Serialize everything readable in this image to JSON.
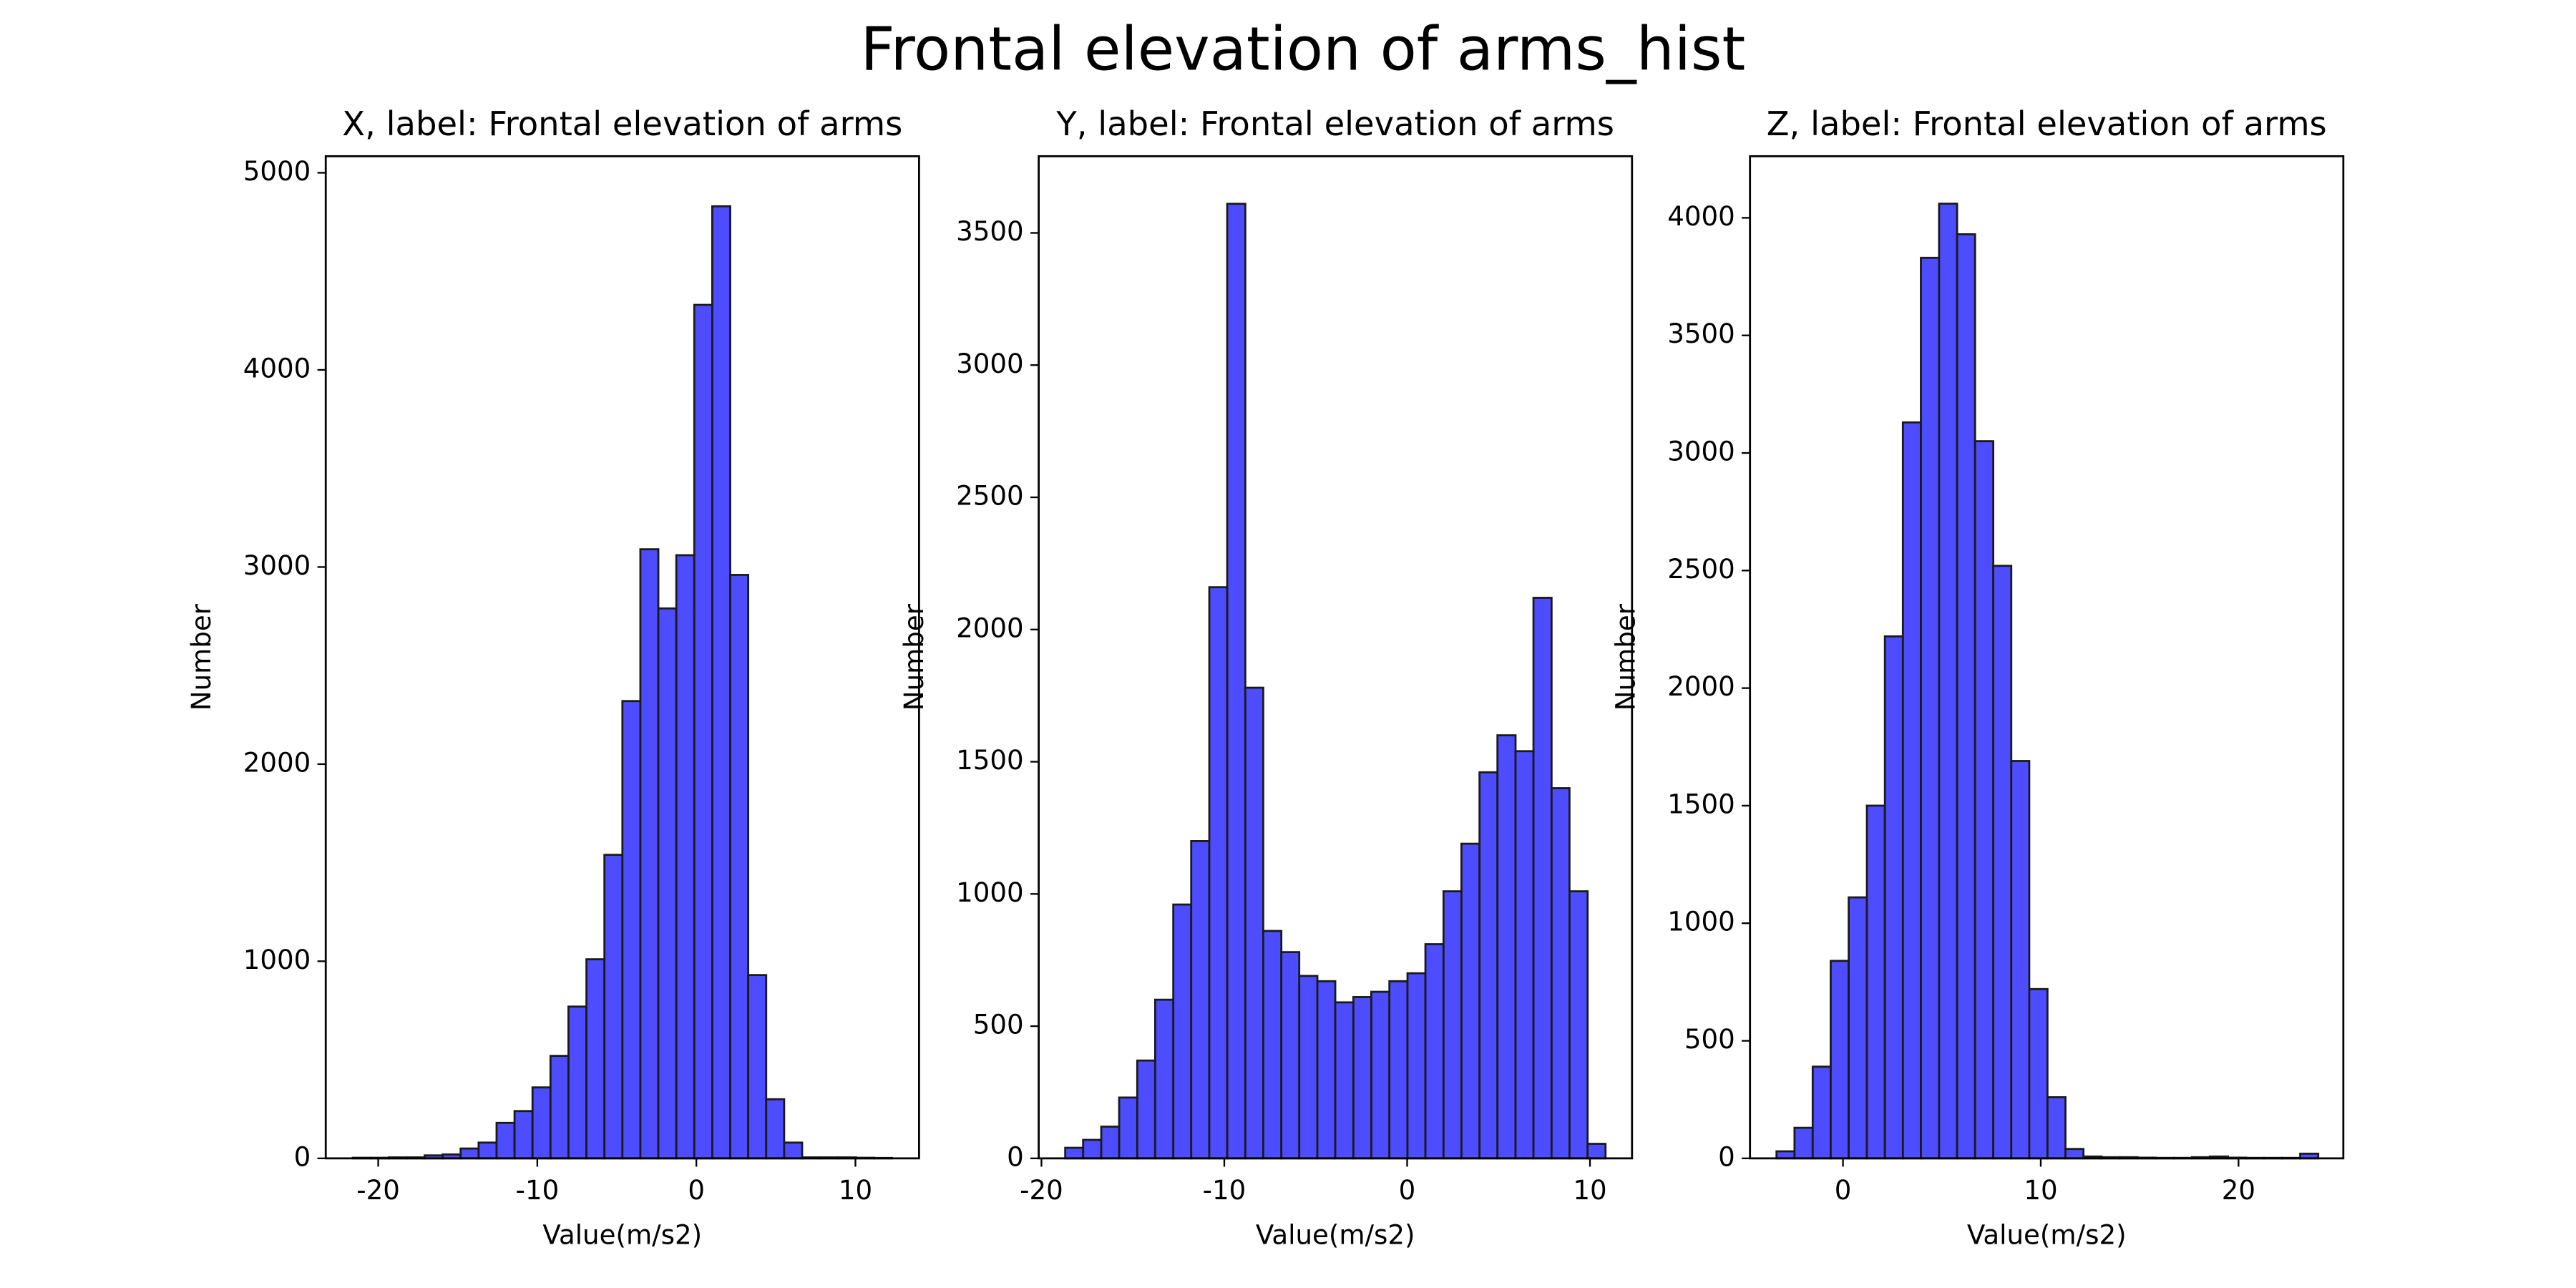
{
  "title": "Frontal elevation of arms_hist",
  "chart_data": [
    {
      "type": "histogram",
      "title": "X, label: Frontal elevation of arms",
      "xlabel": "Value(m/s2)",
      "ylabel": "Number",
      "color": "#4d4dff",
      "edgecolor": "#1a1a1a",
      "bins": [
        -21.6,
        -20.47,
        -19.34,
        -18.21,
        -17.08,
        -15.95,
        -14.82,
        -13.69,
        -12.56,
        -11.43,
        -10.3,
        -9.17,
        -8.04,
        -6.91,
        -5.78,
        -4.65,
        -3.52,
        -2.39,
        -1.26,
        -0.13,
        1.0,
        2.13,
        3.26,
        4.39,
        5.52,
        6.65,
        7.78,
        8.91,
        10.04,
        11.17,
        12.3
      ],
      "values": [
        3,
        3,
        5,
        5,
        15,
        20,
        50,
        80,
        180,
        240,
        360,
        520,
        770,
        1010,
        1540,
        2320,
        3090,
        2790,
        3060,
        4330,
        4830,
        2960,
        930,
        300,
        80,
        5,
        5,
        5,
        3,
        2
      ],
      "xlim": [
        -23.3,
        14.0
      ],
      "ylim": [
        0,
        5084
      ],
      "xticks": [
        -20,
        -10,
        0,
        10
      ],
      "yticks": [
        0,
        1000,
        2000,
        3000,
        4000,
        5000
      ]
    },
    {
      "type": "histogram",
      "title": "Y, label: Frontal elevation of arms",
      "xlabel": "Value(m/s2)",
      "ylabel": "Number",
      "color": "#4d4dff",
      "edgecolor": "#1a1a1a",
      "bins": [
        -18.7,
        -17.72,
        -16.73,
        -15.75,
        -14.76,
        -13.78,
        -12.79,
        -11.81,
        -10.82,
        -9.84,
        -8.85,
        -7.87,
        -6.88,
        -5.9,
        -4.91,
        -3.93,
        -2.94,
        -1.96,
        -0.97,
        0.02,
        1.0,
        1.99,
        2.97,
        3.96,
        4.94,
        5.93,
        6.91,
        7.9,
        8.88,
        9.87,
        10.85
      ],
      "values": [
        40,
        70,
        120,
        230,
        370,
        600,
        960,
        1200,
        2160,
        3610,
        1780,
        860,
        780,
        690,
        670,
        590,
        610,
        630,
        670,
        700,
        810,
        1010,
        1190,
        1460,
        1600,
        1540,
        2120,
        1400,
        1010,
        55
      ],
      "xlim": [
        -20.15,
        12.3
      ],
      "ylim": [
        0,
        3790
      ],
      "xticks": [
        -20,
        -10,
        0,
        10
      ],
      "yticks": [
        0,
        500,
        1000,
        1500,
        2000,
        2500,
        3000,
        3500
      ]
    },
    {
      "type": "histogram",
      "title": "Z, label: Frontal elevation of arms",
      "xlabel": "Value(m/s2)",
      "ylabel": "Number",
      "color": "#4d4dff",
      "edgecolor": "#1a1a1a",
      "bins": [
        -3.36,
        -2.45,
        -1.53,
        -0.62,
        0.29,
        1.21,
        2.12,
        3.03,
        3.94,
        4.86,
        5.77,
        6.68,
        7.6,
        8.51,
        9.42,
        10.34,
        11.25,
        12.16,
        13.07,
        13.99,
        14.9,
        15.81,
        16.73,
        17.64,
        18.55,
        19.47,
        20.38,
        21.29,
        22.2,
        23.12,
        24.03
      ],
      "values": [
        30,
        130,
        390,
        840,
        1110,
        1500,
        2220,
        3130,
        3830,
        4060,
        3930,
        3050,
        2520,
        1690,
        720,
        260,
        40,
        8,
        5,
        5,
        3,
        2,
        2,
        5,
        8,
        3,
        2,
        2,
        2,
        20
      ],
      "xlim": [
        -4.7,
        25.3
      ],
      "ylim": [
        0,
        4262
      ],
      "xticks": [
        0,
        10,
        20
      ],
      "yticks": [
        0,
        500,
        1000,
        1500,
        2000,
        2500,
        3000,
        3500,
        4000
      ]
    }
  ]
}
